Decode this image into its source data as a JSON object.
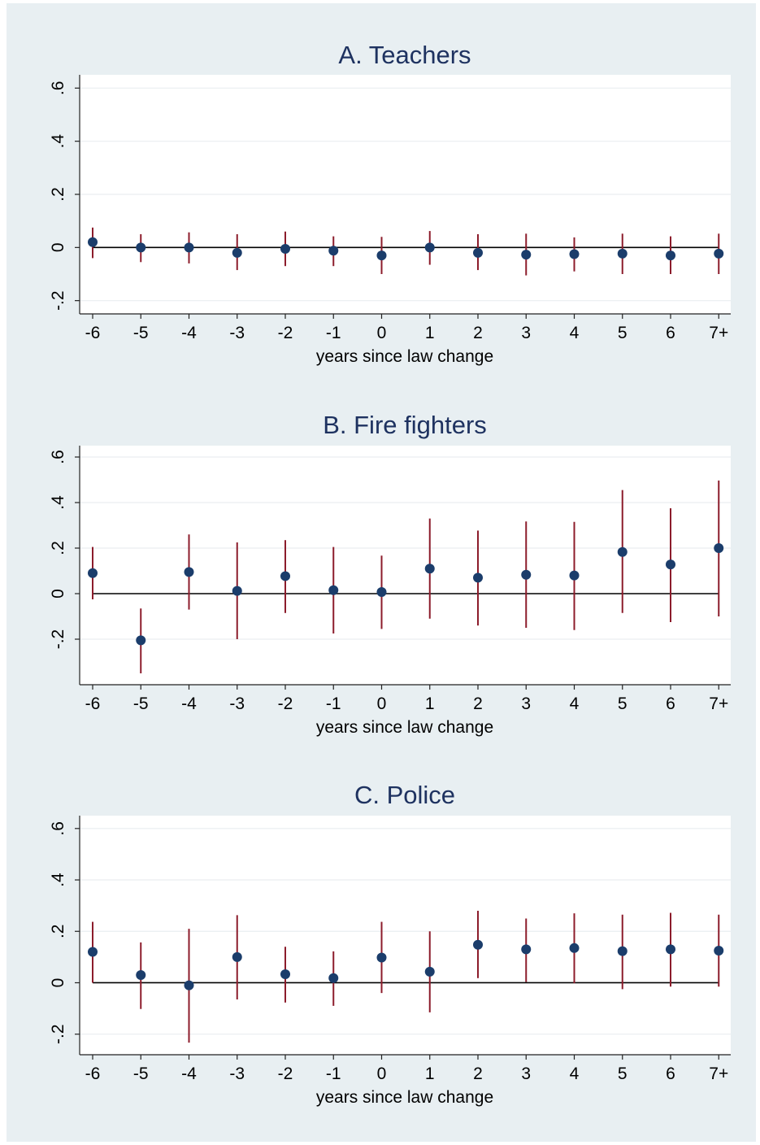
{
  "colors": {
    "outer_background": "#e8eff2",
    "plot_background": "#ffffff",
    "title": "#1e3260",
    "point": "#1b3d6b",
    "ci_line": "#8c1c2b",
    "zero_line": "#000000"
  },
  "chart_data": [
    {
      "type": "scatter",
      "title": "A. Teachers",
      "xlabel": "years since law change",
      "ylabel": "",
      "categories": [
        "-6",
        "-5",
        "-4",
        "-3",
        "-2",
        "-1",
        "0",
        "1",
        "2",
        "3",
        "4",
        "5",
        "6",
        "7+"
      ],
      "yticks": [
        "-.2",
        "0",
        ".2",
        ".4",
        ".6"
      ],
      "ytick_values": [
        -0.2,
        0,
        0.2,
        0.4,
        0.6
      ],
      "ylim": [
        -0.25,
        0.65
      ],
      "reference_line": 0,
      "grid": true,
      "values": [
        0.02,
        0.0,
        0.0,
        -0.02,
        -0.005,
        -0.012,
        -0.03,
        0.0,
        -0.02,
        -0.027,
        -0.025,
        -0.023,
        -0.03,
        -0.023
      ],
      "ci_low": [
        -0.04,
        -0.055,
        -0.06,
        -0.085,
        -0.07,
        -0.07,
        -0.1,
        -0.065,
        -0.085,
        -0.105,
        -0.09,
        -0.1,
        -0.1,
        -0.1
      ],
      "ci_high": [
        0.075,
        0.05,
        0.057,
        0.05,
        0.06,
        0.042,
        0.04,
        0.062,
        0.05,
        0.052,
        0.038,
        0.052,
        0.042,
        0.052
      ]
    },
    {
      "type": "scatter",
      "title": "B. Fire fighters",
      "xlabel": "years since law change",
      "ylabel": "",
      "categories": [
        "-6",
        "-5",
        "-4",
        "-3",
        "-2",
        "-1",
        "0",
        "1",
        "2",
        "3",
        "4",
        "5",
        "6",
        "7+"
      ],
      "yticks": [
        "-.2",
        "0",
        ".2",
        ".4",
        ".6"
      ],
      "ytick_values": [
        -0.2,
        0,
        0.2,
        0.4,
        0.6
      ],
      "ylim": [
        -0.4,
        0.65
      ],
      "reference_line": 0,
      "grid": true,
      "values": [
        0.09,
        -0.205,
        0.095,
        0.012,
        0.077,
        0.015,
        0.007,
        0.11,
        0.07,
        0.083,
        0.08,
        0.183,
        0.128,
        0.2
      ],
      "ci_low": [
        -0.025,
        -0.35,
        -0.07,
        -0.2,
        -0.085,
        -0.175,
        -0.155,
        -0.11,
        -0.14,
        -0.15,
        -0.16,
        -0.085,
        -0.125,
        -0.1
      ],
      "ci_high": [
        0.205,
        -0.065,
        0.26,
        0.225,
        0.235,
        0.205,
        0.167,
        0.33,
        0.277,
        0.317,
        0.315,
        0.455,
        0.375,
        0.497
      ]
    },
    {
      "type": "scatter",
      "title": "C. Police",
      "xlabel": "years since law change",
      "ylabel": "",
      "categories": [
        "-6",
        "-5",
        "-4",
        "-3",
        "-2",
        "-1",
        "0",
        "1",
        "2",
        "3",
        "4",
        "5",
        "6",
        "7+"
      ],
      "yticks": [
        "-.2",
        "0",
        ".2",
        ".4",
        ".6"
      ],
      "ytick_values": [
        -0.2,
        0,
        0.2,
        0.4,
        0.6
      ],
      "ylim": [
        -0.28,
        0.65
      ],
      "reference_line": 0,
      "grid": true,
      "values": [
        0.12,
        0.03,
        -0.01,
        0.1,
        0.033,
        0.018,
        0.098,
        0.043,
        0.148,
        0.13,
        0.135,
        0.123,
        0.13,
        0.125
      ],
      "ci_low": [
        0.0,
        -0.102,
        -0.233,
        -0.065,
        -0.077,
        -0.09,
        -0.04,
        -0.115,
        0.018,
        0.003,
        -0.002,
        -0.025,
        -0.015,
        -0.015
      ],
      "ci_high": [
        0.237,
        0.157,
        0.21,
        0.263,
        0.14,
        0.122,
        0.237,
        0.2,
        0.28,
        0.25,
        0.27,
        0.265,
        0.272,
        0.265
      ]
    }
  ]
}
